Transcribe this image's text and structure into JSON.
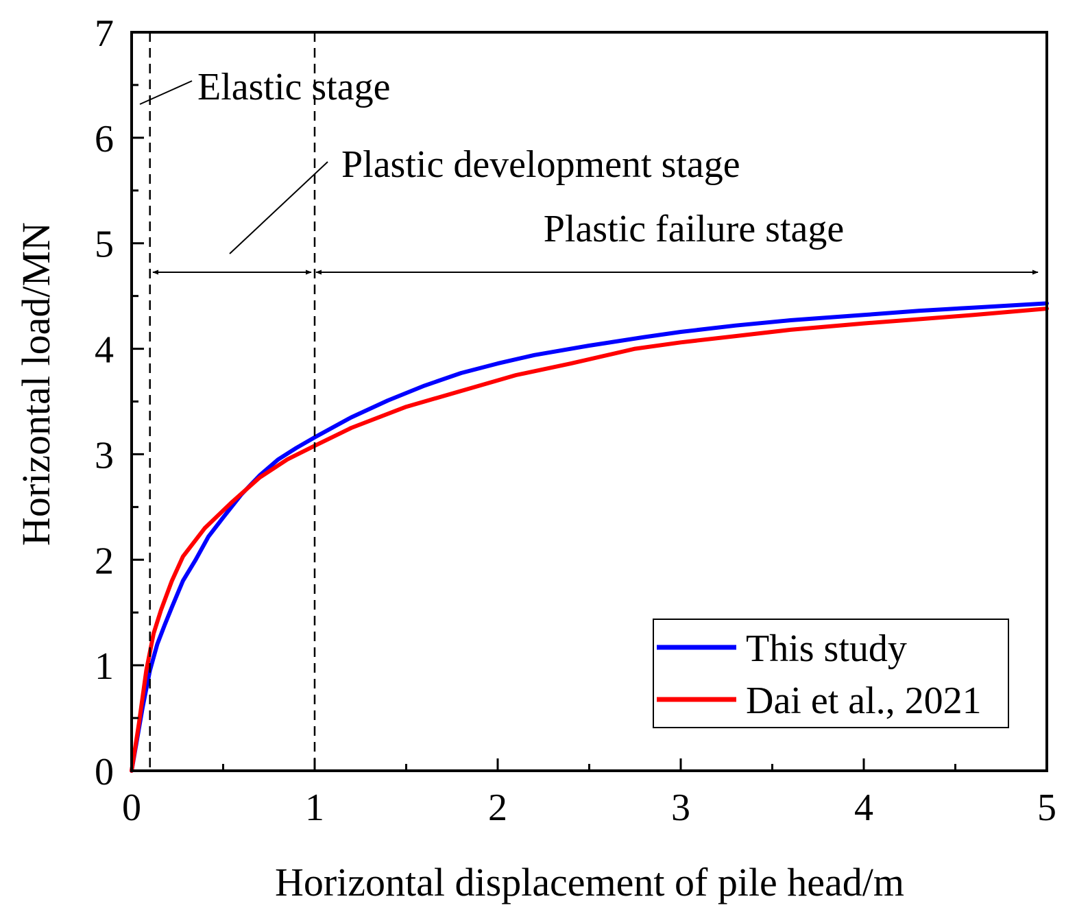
{
  "chart_data": {
    "type": "line",
    "title": "",
    "xlabel": "Horizontal displacement of pile head/m",
    "ylabel": "Horizontal load/MN",
    "xlim": [
      0,
      5
    ],
    "ylim": [
      0,
      7
    ],
    "xticks": [
      0,
      1,
      2,
      3,
      4,
      5
    ],
    "yticks": [
      0,
      1,
      2,
      3,
      4,
      5,
      6,
      7
    ],
    "grid": false,
    "legend_position": "bottom-right",
    "series": [
      {
        "name": "This study",
        "color": "#0000ff",
        "x": [
          0,
          0.03,
          0.06,
          0.1,
          0.14,
          0.18,
          0.22,
          0.28,
          0.35,
          0.42,
          0.5,
          0.6,
          0.7,
          0.8,
          0.9,
          1.0,
          1.2,
          1.4,
          1.6,
          1.8,
          2.0,
          2.2,
          2.5,
          2.8,
          3.0,
          3.3,
          3.6,
          4.0,
          4.3,
          4.6,
          5.0
        ],
        "y": [
          0,
          0.3,
          0.6,
          0.95,
          1.2,
          1.38,
          1.55,
          1.8,
          2.0,
          2.22,
          2.4,
          2.62,
          2.8,
          2.95,
          3.06,
          3.16,
          3.35,
          3.51,
          3.65,
          3.77,
          3.86,
          3.94,
          4.03,
          4.11,
          4.16,
          4.22,
          4.27,
          4.32,
          4.36,
          4.39,
          4.43
        ]
      },
      {
        "name": "Dai et al., 2021",
        "color": "#ff0000",
        "x": [
          0,
          0.04,
          0.08,
          0.12,
          0.16,
          0.22,
          0.28,
          0.4,
          0.55,
          0.7,
          0.85,
          1.0,
          1.2,
          1.5,
          1.8,
          2.1,
          2.4,
          2.75,
          3.0,
          3.3,
          3.6,
          4.0,
          4.3,
          4.6,
          5.0
        ],
        "y": [
          0,
          0.45,
          0.95,
          1.3,
          1.52,
          1.8,
          2.03,
          2.3,
          2.55,
          2.78,
          2.95,
          3.08,
          3.25,
          3.45,
          3.6,
          3.75,
          3.86,
          4.0,
          4.06,
          4.12,
          4.18,
          4.24,
          4.28,
          4.32,
          4.38
        ]
      }
    ],
    "reference_lines": [
      {
        "axis": "x",
        "value": 0.1,
        "style": "dashed"
      },
      {
        "axis": "x",
        "value": 1.0,
        "style": "dashed"
      }
    ],
    "annotations": [
      {
        "text": "Elastic stage"
      },
      {
        "text": "Plastic development stage"
      },
      {
        "text": "Plastic failure stage"
      }
    ]
  }
}
